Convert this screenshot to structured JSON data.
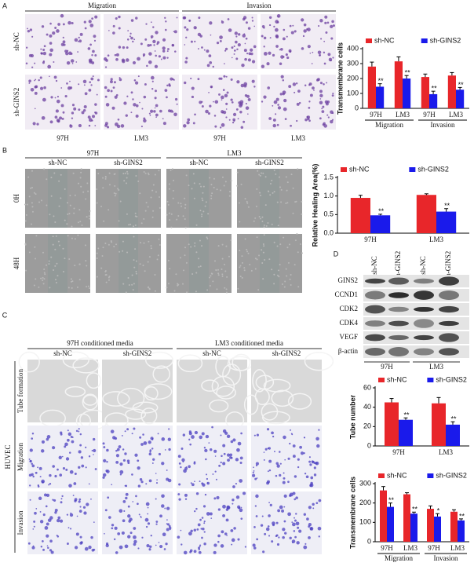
{
  "panels": {
    "A": {
      "label": "A",
      "col_headers": [
        "Migration",
        "Invasion"
      ],
      "row_labels": [
        "sh-NC",
        "sh-GINS2"
      ],
      "col_labels": [
        "97H",
        "LM3",
        "97H",
        "LM3"
      ]
    },
    "B": {
      "label": "B",
      "col_headers": [
        "97H",
        "LM3"
      ],
      "col_labels": [
        "sh-NC",
        "sh-GINS2",
        "sh-NC",
        "sh-GINS2"
      ],
      "row_labels": [
        "0H",
        "48H"
      ]
    },
    "C": {
      "label": "C",
      "col_headers": [
        "97H conditioned media",
        "LM3 conditioned media"
      ],
      "col_labels": [
        "sh-NC",
        "sh-GINS2",
        "sh-NC",
        "sh-GINS2"
      ],
      "row_labels": [
        "Tube formation",
        "Migration",
        "Invasion"
      ],
      "side_label": "HUVEC"
    },
    "D": {
      "label": "D",
      "lane_labels": [
        "sh-NC",
        "sh-GINS2",
        "sh-NC",
        "sh-GINS2"
      ],
      "row_labels": [
        "GINS2",
        "CCND1",
        "CDK2",
        "CDK4",
        "VEGF",
        "β-actin"
      ],
      "group_labels": [
        "97H",
        "LM3"
      ]
    }
  },
  "chart_data": [
    {
      "type": "bar",
      "ylabel": "Transmembrane cells",
      "categories": [
        "97H",
        "LM3",
        "97H",
        "LM3"
      ],
      "groups": [
        "Migration",
        "Invasion"
      ],
      "series": [
        {
          "name": "sh-NC",
          "color": "#e8262a",
          "values": [
            280,
            315,
            210,
            220
          ],
          "errors": [
            30,
            30,
            20,
            20
          ]
        },
        {
          "name": "sh-GINS2",
          "color": "#1a1aeb",
          "values": [
            145,
            200,
            95,
            125
          ],
          "errors": [
            20,
            20,
            20,
            15
          ],
          "sig": [
            "**",
            "**",
            "**",
            "**"
          ]
        }
      ],
      "ylim": [
        0,
        400
      ],
      "yticks": [
        0,
        100,
        200,
        300,
        400
      ]
    },
    {
      "type": "bar",
      "ylabel": "Relative Healing Area(%)",
      "categories": [
        "97H",
        "LM3"
      ],
      "series": [
        {
          "name": "sh-NC",
          "color": "#e8262a",
          "values": [
            0.95,
            1.03
          ],
          "errors": [
            0.07,
            0.03
          ]
        },
        {
          "name": "sh-GINS2",
          "color": "#1a1aeb",
          "values": [
            0.48,
            0.58
          ],
          "errors": [
            0.03,
            0.08
          ],
          "sig": [
            "**",
            "**"
          ]
        }
      ],
      "ylim": [
        0,
        1.5
      ],
      "yticks": [
        {
          "value": 0,
          "label": "0.0"
        },
        0.5,
        {
          "value": 1,
          "label": "1.0"
        },
        1.5
      ]
    },
    {
      "type": "bar",
      "ylabel": "Tube number",
      "categories": [
        "97H",
        "LM3"
      ],
      "series": [
        {
          "name": "sh-NC",
          "color": "#e8262a",
          "values": [
            45,
            44
          ],
          "errors": [
            4,
            6
          ]
        },
        {
          "name": "sh-GINS2",
          "color": "#1a1aeb",
          "values": [
            27,
            22
          ],
          "errors": [
            2,
            3
          ],
          "sig": [
            "**",
            "**"
          ]
        }
      ],
      "ylim": [
        0,
        60
      ],
      "yticks": [
        0,
        20,
        40,
        60
      ]
    },
    {
      "type": "bar",
      "ylabel": "Transmembrane cells",
      "categories": [
        "97H",
        "LM3",
        "97H",
        "LM3"
      ],
      "groups": [
        "Migration",
        "Invasion"
      ],
      "series": [
        {
          "name": "sh-NC",
          "color": "#e8262a",
          "values": [
            265,
            245,
            170,
            155
          ],
          "errors": [
            20,
            8,
            15,
            10
          ]
        },
        {
          "name": "sh-GINS2",
          "color": "#1a1aeb",
          "values": [
            180,
            145,
            130,
            110
          ],
          "errors": [
            20,
            8,
            15,
            8
          ],
          "sig": [
            "**",
            "**",
            "*",
            "**"
          ]
        }
      ],
      "ylim": [
        0,
        300
      ],
      "yticks": [
        0,
        100,
        200,
        300
      ]
    }
  ]
}
